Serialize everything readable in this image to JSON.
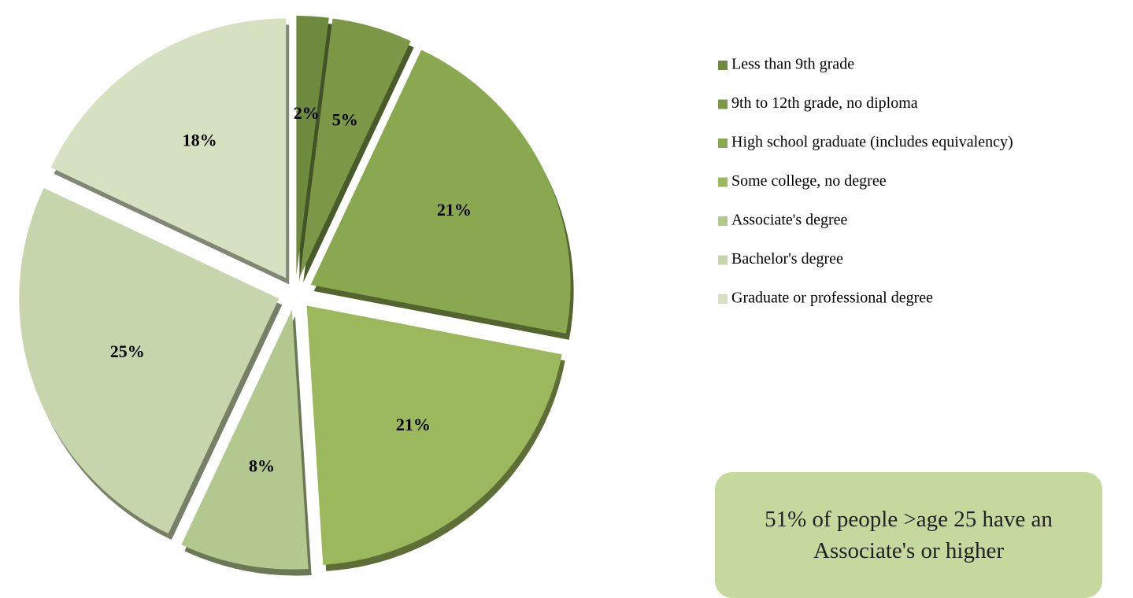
{
  "chart_data": {
    "type": "pie",
    "categories": [
      "Less than 9th grade",
      "9th to 12th grade, no diploma",
      "High school graduate (includes equivalency)",
      "Some college, no degree",
      "Associate's degree",
      "Bachelor's degree",
      "Graduate or professional degree"
    ],
    "values": [
      2,
      5,
      21,
      21,
      8,
      25,
      18
    ],
    "value_labels": [
      "2%",
      "5%",
      "21%",
      "21%",
      "8%",
      "25%",
      "18%"
    ],
    "colors": [
      "#6e8a3e",
      "#7c9847",
      "#8aa84f",
      "#9cb85c",
      "#b3c88e",
      "#c6d5ab",
      "#d6e1c2"
    ],
    "legend": "right",
    "annotation": "51% of people >age 25 have an Associate's or higher"
  }
}
